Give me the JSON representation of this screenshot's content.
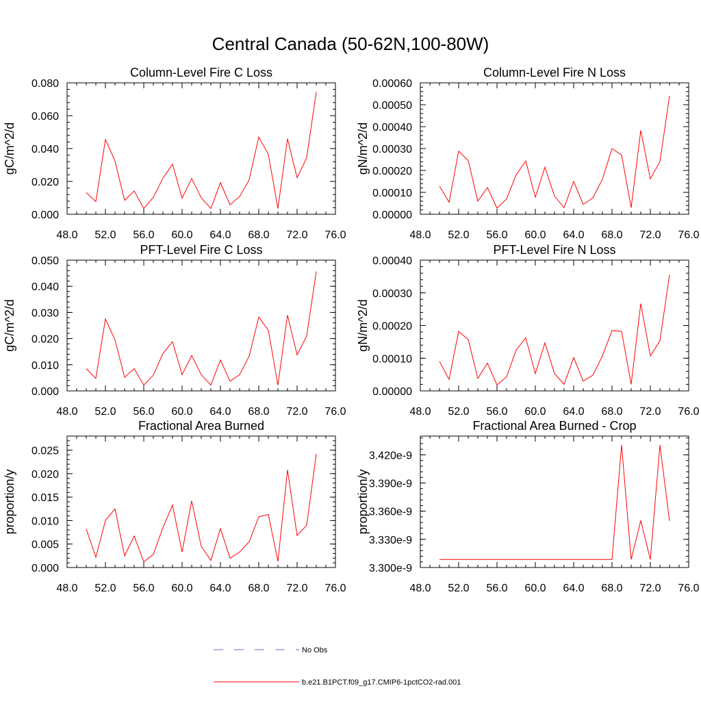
{
  "title": "Central Canada (50-62N,100-80W)",
  "legend": [
    {
      "label": "No Obs",
      "color": "#6a6ad0",
      "dash": true
    },
    {
      "label": "b.e21.B1PCT.f09_g17.CMIP6-1pctCO2-rad.001",
      "color": "#ff0000",
      "dash": false
    }
  ],
  "chart_data": [
    {
      "type": "line",
      "title": "Column-Level Fire C Loss",
      "ylabel": "gC/m^2/d",
      "xlim": [
        48,
        76
      ],
      "ylim": [
        0,
        0.08
      ],
      "xticks": [
        "48.0",
        "52.0",
        "56.0",
        "60.0",
        "64.0",
        "68.0",
        "72.0",
        "76.0"
      ],
      "yticks": [
        "0.000",
        "0.020",
        "0.040",
        "0.060",
        "0.080"
      ],
      "x": [
        50,
        51,
        52,
        53,
        54,
        55,
        56,
        57,
        58,
        59,
        60,
        61,
        62,
        63,
        64,
        65,
        66,
        67,
        68,
        69,
        70,
        71,
        72,
        73,
        74
      ],
      "series": [
        {
          "values": [
            0.0132,
            0.0077,
            0.0455,
            0.0325,
            0.0085,
            0.0142,
            0.0035,
            0.0103,
            0.022,
            0.0305,
            0.0098,
            0.0218,
            0.01,
            0.0035,
            0.0192,
            0.0058,
            0.0108,
            0.021,
            0.047,
            0.0365,
            0.0035,
            0.046,
            0.0222,
            0.0345,
            0.0745
          ]
        }
      ]
    },
    {
      "type": "line",
      "title": "Column-Level Fire N Loss",
      "ylabel": "gN/m^2/d",
      "xlim": [
        48,
        76
      ],
      "ylim": [
        0,
        0.0006
      ],
      "xticks": [
        "48.0",
        "52.0",
        "56.0",
        "60.0",
        "64.0",
        "68.0",
        "72.0",
        "76.0"
      ],
      "yticks": [
        "0.00000",
        "0.00010",
        "0.00020",
        "0.00030",
        "0.00040",
        "0.00050",
        "0.00060"
      ],
      "x": [
        50,
        51,
        52,
        53,
        54,
        55,
        56,
        57,
        58,
        59,
        60,
        61,
        62,
        63,
        64,
        65,
        66,
        67,
        68,
        69,
        70,
        71,
        72,
        73,
        74
      ],
      "series": [
        {
          "values": [
            0.000128,
            5.5e-05,
            0.000288,
            0.000245,
            6e-05,
            0.000122,
            2.8e-05,
            7e-05,
            0.00018,
            0.000243,
            7.8e-05,
            0.000215,
            8.3e-05,
            3e-05,
            0.00015,
            4.5e-05,
            7.5e-05,
            0.00016,
            0.0003,
            0.00027,
            3e-05,
            0.000383,
            0.000162,
            0.00024,
            0.00054
          ]
        }
      ]
    },
    {
      "type": "line",
      "title": "PFT-Level Fire C Loss",
      "ylabel": "gC/m^2/d",
      "xlim": [
        48,
        76
      ],
      "ylim": [
        0,
        0.05
      ],
      "xticks": [
        "48.0",
        "52.0",
        "56.0",
        "60.0",
        "64.0",
        "68.0",
        "72.0",
        "76.0"
      ],
      "yticks": [
        "0.000",
        "0.010",
        "0.020",
        "0.030",
        "0.040",
        "0.050"
      ],
      "x": [
        50,
        51,
        52,
        53,
        54,
        55,
        56,
        57,
        58,
        59,
        60,
        61,
        62,
        63,
        64,
        65,
        66,
        67,
        68,
        69,
        70,
        71,
        72,
        73,
        74
      ],
      "series": [
        {
          "values": [
            0.0085,
            0.0048,
            0.0275,
            0.0195,
            0.0052,
            0.0085,
            0.0022,
            0.006,
            0.0143,
            0.0188,
            0.0062,
            0.0135,
            0.0062,
            0.0022,
            0.0118,
            0.0037,
            0.0062,
            0.0133,
            0.0282,
            0.0232,
            0.0022,
            0.029,
            0.0138,
            0.021,
            0.0457
          ]
        }
      ]
    },
    {
      "type": "line",
      "title": "PFT-Level Fire N Loss",
      "ylabel": "gN/m^2/d",
      "xlim": [
        48,
        76
      ],
      "ylim": [
        0,
        0.0004
      ],
      "xticks": [
        "48.0",
        "52.0",
        "56.0",
        "60.0",
        "64.0",
        "68.0",
        "72.0",
        "76.0"
      ],
      "yticks": [
        "0.00000",
        "0.00010",
        "0.00020",
        "0.00030",
        "0.00040"
      ],
      "x": [
        50,
        51,
        52,
        53,
        54,
        55,
        56,
        57,
        58,
        59,
        60,
        61,
        62,
        63,
        64,
        65,
        66,
        67,
        68,
        69,
        70,
        71,
        72,
        73,
        74
      ],
      "series": [
        {
          "values": [
            9e-05,
            3.5e-05,
            0.000182,
            0.000157,
            3.8e-05,
            8.5e-05,
            1.8e-05,
            4.3e-05,
            0.000125,
            0.000162,
            5.3e-05,
            0.000147,
            5.3e-05,
            2e-05,
            0.000102,
            3e-05,
            4.8e-05,
            0.000107,
            0.000185,
            0.000182,
            2e-05,
            0.000267,
            0.000107,
            0.000153,
            0.000355
          ]
        }
      ]
    },
    {
      "type": "line",
      "title": "Fractional Area Burned",
      "ylabel": "proportion/y",
      "xlim": [
        48,
        76
      ],
      "ylim": [
        0,
        0.028
      ],
      "xticks": [
        "48.0",
        "52.0",
        "56.0",
        "60.0",
        "64.0",
        "68.0",
        "72.0",
        "76.0"
      ],
      "yticks": [
        "0.000",
        "0.005",
        "0.010",
        "0.015",
        "0.020",
        "0.025"
      ],
      "x": [
        50,
        51,
        52,
        53,
        54,
        55,
        56,
        57,
        58,
        59,
        60,
        61,
        62,
        63,
        64,
        65,
        66,
        67,
        68,
        69,
        70,
        71,
        72,
        73,
        74
      ],
      "series": [
        {
          "values": [
            0.0082,
            0.0022,
            0.01,
            0.0125,
            0.0025,
            0.0067,
            0.0012,
            0.0028,
            0.0085,
            0.0133,
            0.0033,
            0.0142,
            0.0045,
            0.0015,
            0.0083,
            0.002,
            0.0033,
            0.0055,
            0.0108,
            0.0113,
            0.0013,
            0.0208,
            0.0068,
            0.009,
            0.0242
          ]
        }
      ]
    },
    {
      "type": "line",
      "title": "Fractional Area Burned - Crop",
      "ylabel": "proportion/y",
      "xlim": [
        48,
        76
      ],
      "ylim": [
        3.3e-09,
        3.44e-09
      ],
      "xticks": [
        "48.0",
        "52.0",
        "56.0",
        "60.0",
        "64.0",
        "68.0",
        "72.0",
        "76.0"
      ],
      "yticks": [
        "3.300e-9",
        "3.330e-9",
        "3.360e-9",
        "3.390e-9",
        "3.420e-9"
      ],
      "ytick_values": [
        3.3e-09,
        3.33e-09,
        3.36e-09,
        3.39e-09,
        3.42e-09
      ],
      "x": [
        50,
        51,
        52,
        53,
        54,
        55,
        56,
        57,
        58,
        59,
        60,
        61,
        62,
        63,
        64,
        65,
        66,
        67,
        68,
        69,
        70,
        71,
        72,
        73,
        74
      ],
      "series": [
        {
          "values": [
            3.3085e-09,
            3.3085e-09,
            3.3085e-09,
            3.3085e-09,
            3.3085e-09,
            3.3085e-09,
            3.3085e-09,
            3.3085e-09,
            3.3085e-09,
            3.3085e-09,
            3.3085e-09,
            3.3085e-09,
            3.3085e-09,
            3.3085e-09,
            3.3085e-09,
            3.3085e-09,
            3.3085e-09,
            3.3085e-09,
            3.3085e-09,
            3.4305e-09,
            3.3085e-09,
            3.35e-09,
            3.3085e-09,
            3.4305e-09,
            3.3495e-09
          ]
        }
      ]
    }
  ]
}
